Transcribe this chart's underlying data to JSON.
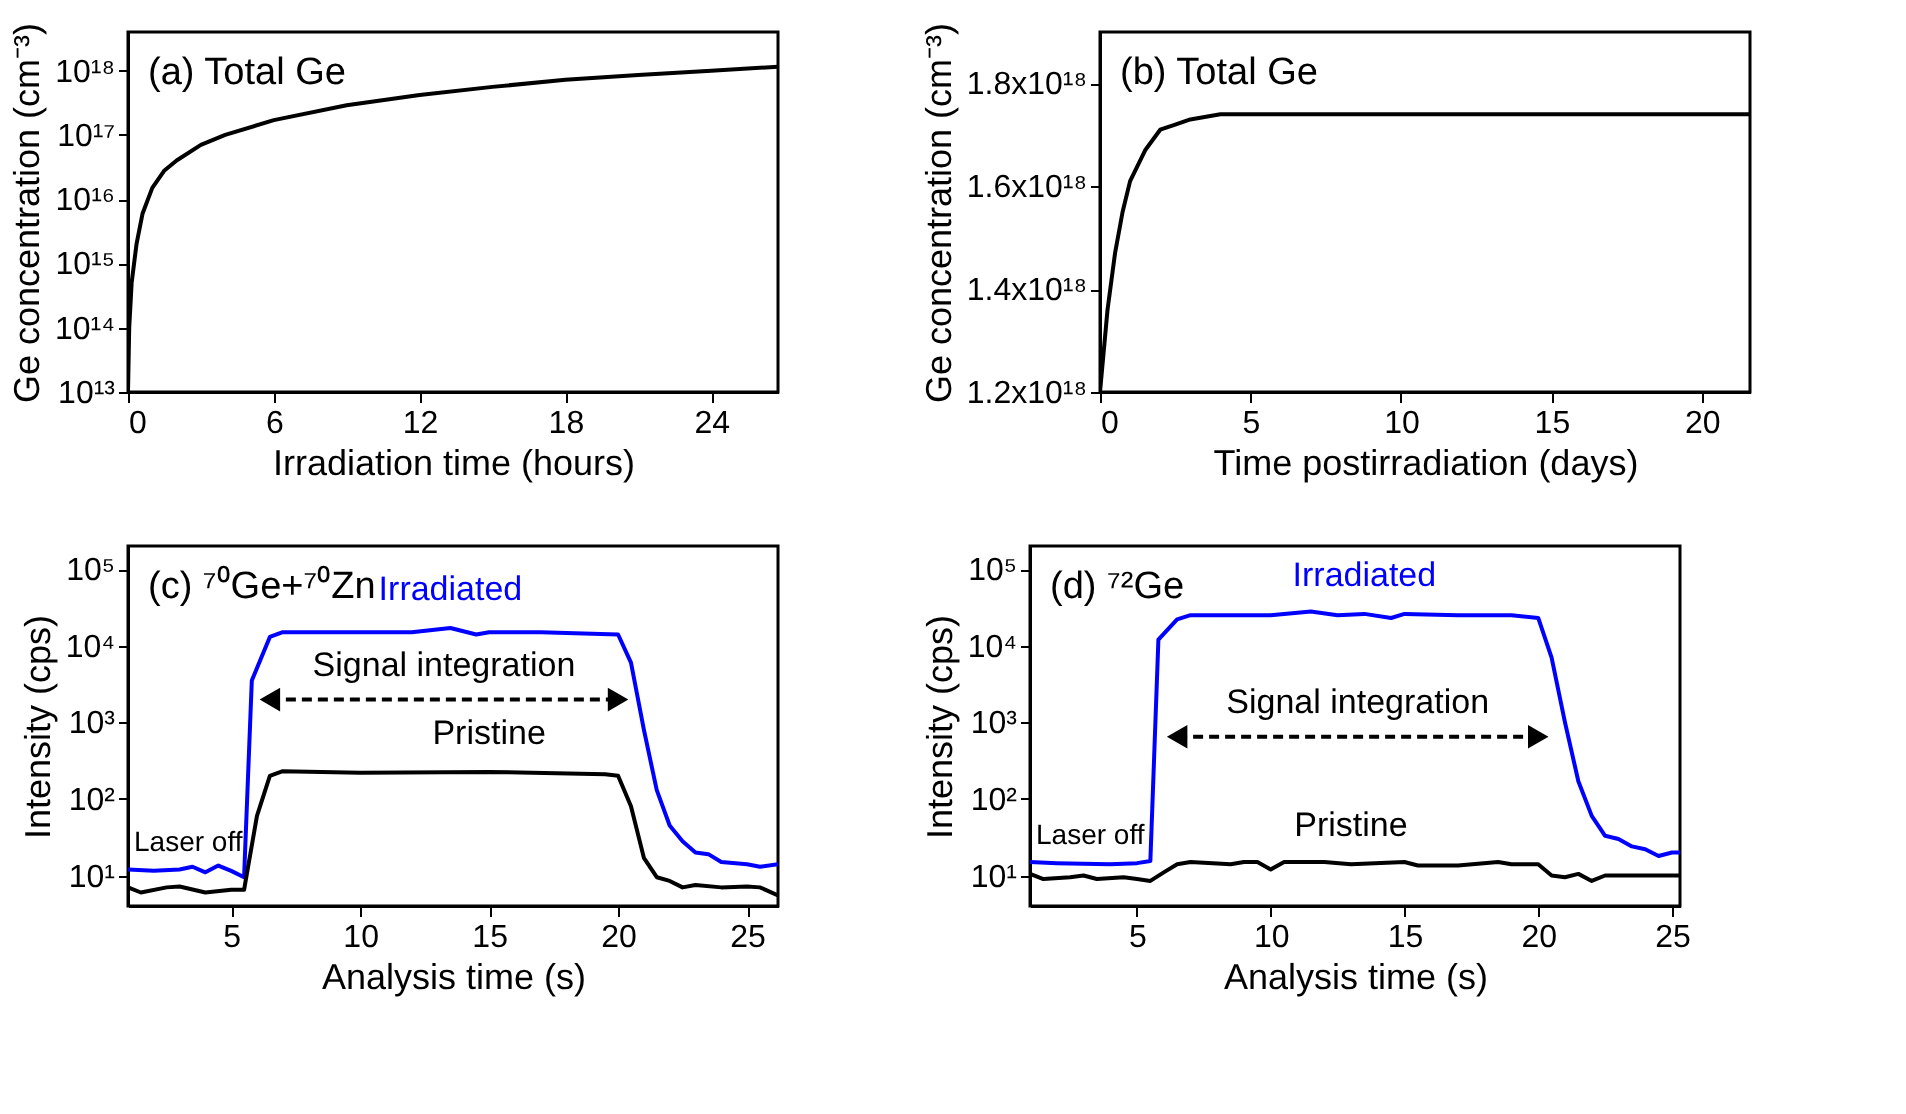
{
  "chart_data": [
    {
      "type": "line",
      "title": "(a) Total Ge",
      "xlabel": "Irradiation time (hours)",
      "ylabel": "Ge concentration (cm⁻³)",
      "log": "y",
      "xlim": [
        0,
        26.75
      ],
      "xticks": [
        0,
        6,
        12,
        18,
        24
      ],
      "ylim": [
        10000000000000.0,
        4e+18
      ],
      "yticks": [
        {
          "value": 10000000000000.0,
          "label": "10¹³"
        },
        {
          "value": 100000000000000.0,
          "label": "10¹⁴"
        },
        {
          "value": 1000000000000000.0,
          "label": "10¹⁵"
        },
        {
          "value": 1e+16,
          "label": "10¹⁶"
        },
        {
          "value": 1e+17,
          "label": "10¹⁷"
        },
        {
          "value": 1e+18,
          "label": "10¹⁸"
        }
      ],
      "series": [
        {
          "color": "#000000",
          "x": [
            0,
            0.05,
            0.15,
            0.35,
            0.6,
            1,
            1.5,
            2,
            3,
            4,
            6,
            9,
            12,
            15,
            18,
            21,
            24,
            26.75
          ],
          "values": [
            10000000000000.0,
            100000000000000.0,
            500000000000000.0,
            2000000000000000.0,
            6000000000000000.0,
            1.5e+16,
            2.8e+16,
            4e+16,
            7e+16,
            1e+17,
            1.7e+17,
            2.9e+17,
            4.2e+17,
            5.6e+17,
            7.2e+17,
            8.6e+17,
            1e+18,
            1.15e+18
          ]
        }
      ]
    },
    {
      "type": "line",
      "title": "(b) Total Ge",
      "xlabel": "Time postirradiation (days)",
      "ylabel": "Ge concentration (cm⁻³)",
      "xlim": [
        0,
        21.6
      ],
      "xticks": [
        0,
        5,
        10,
        15,
        20
      ],
      "ylim": [
        1.2e+18,
        1.9e+18
      ],
      "yticks": [
        {
          "value": 1.2e+18,
          "label": "1.2x10¹⁸"
        },
        {
          "value": 1.4e+18,
          "label": "1.4x10¹⁸"
        },
        {
          "value": 1.6e+18,
          "label": "1.6x10¹⁸"
        },
        {
          "value": 1.8e+18,
          "label": "1.8x10¹⁸"
        }
      ],
      "series": [
        {
          "color": "#000000",
          "x": [
            0,
            0.25,
            0.5,
            0.75,
            1,
            1.5,
            2,
            2.5,
            3,
            4,
            5,
            7,
            10,
            15,
            21.6
          ],
          "values": [
            1.2e+18,
            1.36e+18,
            1.47e+18,
            1.55e+18,
            1.61e+18,
            1.67e+18,
            1.71e+18,
            1.72e+18,
            1.73e+18,
            1.74e+18,
            1.74e+18,
            1.74e+18,
            1.74e+18,
            1.74e+18,
            1.74e+18
          ]
        }
      ]
    },
    {
      "type": "line",
      "title": "(c) ⁷⁰Ge+⁷⁰Zn",
      "xlabel": "Analysis time (s)",
      "ylabel": "Intensity (cps)",
      "log": "y",
      "xlim": [
        1,
        26.2
      ],
      "xticks": [
        5,
        10,
        15,
        20,
        25
      ],
      "ylim": [
        4,
        200000
      ],
      "yticks": [
        {
          "value": 10,
          "label": "10¹"
        },
        {
          "value": 100,
          "label": "10²"
        },
        {
          "value": 1000,
          "label": "10³"
        },
        {
          "value": 10000,
          "label": "10⁴"
        },
        {
          "value": 100000,
          "label": "10⁵"
        }
      ],
      "annotations": [
        "Laser off",
        "Signal integration"
      ],
      "series": [
        {
          "name": "Irradiated",
          "color": "#0000ff",
          "x": [
            1,
            2,
            3,
            3.5,
            4,
            4.5,
            5,
            5.5,
            5.8,
            6.5,
            7,
            10,
            12,
            13.5,
            14.5,
            15,
            17,
            20,
            20.5,
            21,
            21.5,
            22,
            22.5,
            23,
            23.5,
            24,
            25,
            25.5,
            26.2
          ],
          "values": [
            12,
            11.5,
            12,
            13,
            11,
            13.5,
            11.5,
            9.5,
            3500,
            13000,
            15000,
            15000,
            15000,
            17000,
            14000,
            15000,
            15000,
            14000,
            6000,
            800,
            130,
            45,
            28,
            20,
            19,
            15,
            14,
            13,
            14
          ]
        },
        {
          "name": "Pristine",
          "color": "#000000",
          "x": [
            1,
            1.5,
            2.5,
            3,
            4,
            5,
            5.5,
            6,
            6.5,
            7,
            10,
            15,
            19.5,
            20,
            20.5,
            21,
            21.5,
            22,
            22.5,
            23,
            24,
            25,
            25.5,
            26.2
          ],
          "values": [
            7,
            6,
            7,
            7.2,
            6,
            6.5,
            6.5,
            60,
            200,
            230,
            220,
            225,
            210,
            200,
            80,
            17,
            9.5,
            8.5,
            7,
            7.5,
            7,
            7.2,
            7,
            5.5
          ]
        }
      ]
    },
    {
      "type": "line",
      "title": "(d) ⁷²Ge",
      "xlabel": "Analysis time (s)",
      "ylabel": "Intensity (cps)",
      "log": "y",
      "xlim": [
        1,
        25.3
      ],
      "xticks": [
        5,
        10,
        15,
        20,
        25
      ],
      "ylim": [
        4,
        200000
      ],
      "yticks": [
        {
          "value": 10,
          "label": "10¹"
        },
        {
          "value": 100,
          "label": "10²"
        },
        {
          "value": 1000,
          "label": "10³"
        },
        {
          "value": 10000,
          "label": "10⁴"
        },
        {
          "value": 100000,
          "label": "10⁵"
        }
      ],
      "annotations": [
        "Laser off",
        "Signal integration"
      ],
      "series": [
        {
          "name": "Irradiated",
          "color": "#0000ff",
          "x": [
            1,
            2,
            4,
            5,
            5.5,
            5.8,
            6.5,
            7,
            10,
            11.5,
            12.5,
            13.5,
            14.5,
            15,
            17,
            19,
            20,
            20.5,
            21,
            21.5,
            22,
            22.5,
            23,
            23.5,
            24,
            24.5,
            25,
            25.3
          ],
          "values": [
            15,
            14.5,
            14,
            14.5,
            15.5,
            12000,
            22000,
            25000,
            25000,
            28000,
            25000,
            26000,
            23000,
            26000,
            25000,
            25000,
            23000,
            7000,
            1000,
            170,
            60,
            33,
            30,
            24,
            22,
            18,
            20,
            20
          ]
        },
        {
          "name": "Pristine",
          "color": "#000000",
          "x": [
            1,
            1.5,
            2.5,
            3,
            3.5,
            4.5,
            5,
            5.5,
            6,
            6.5,
            7,
            8.5,
            9,
            9.5,
            10,
            10.5,
            12,
            13,
            15,
            15.5,
            17,
            18.5,
            19,
            20,
            20.5,
            21,
            21.5,
            22,
            22.5,
            24,
            25,
            25.3
          ],
          "values": [
            10.5,
            9,
            9.5,
            10,
            9,
            9.5,
            9,
            8.5,
            11,
            14,
            15,
            14,
            15,
            15,
            12,
            15,
            15,
            14,
            15,
            13.5,
            13.5,
            15,
            14,
            14,
            10,
            9.5,
            10.5,
            8.5,
            10,
            10,
            10,
            10
          ]
        }
      ]
    }
  ]
}
